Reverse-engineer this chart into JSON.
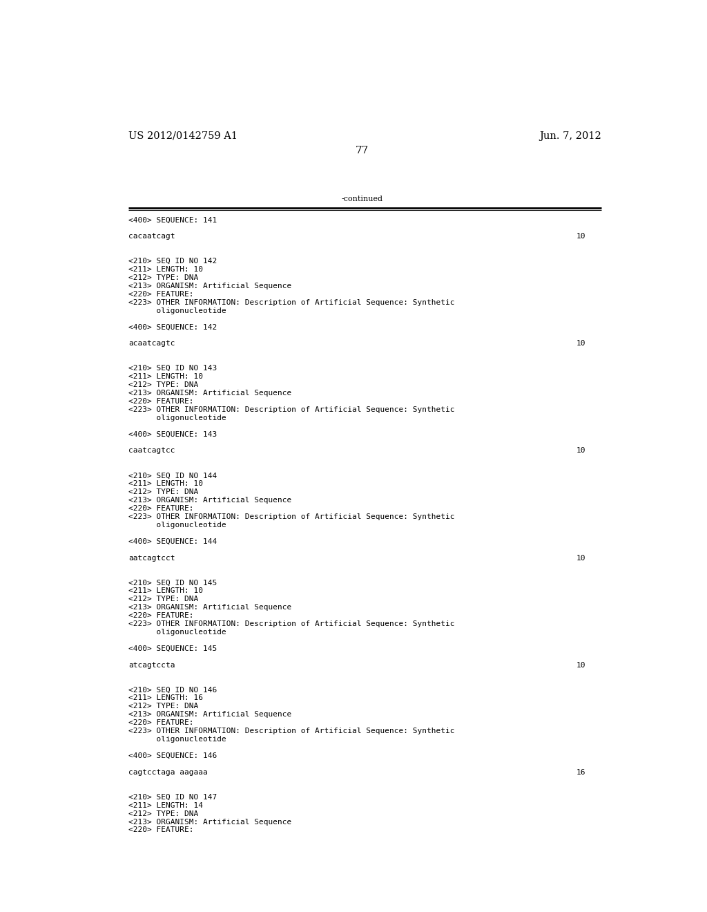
{
  "bg_color": "#ffffff",
  "header_left": "US 2012/0142759 A1",
  "header_right": "Jun. 7, 2012",
  "page_number": "77",
  "continued_text": "-continued",
  "font_size_header": 10.5,
  "font_size_body": 8.0,
  "font_size_page": 11,
  "content_lines": [
    {
      "text": "<400> SEQUENCE: 141",
      "seq": ""
    },
    {
      "text": "",
      "seq": ""
    },
    {
      "text": "cacaatcagt",
      "seq": "10"
    },
    {
      "text": "",
      "seq": ""
    },
    {
      "text": "",
      "seq": ""
    },
    {
      "text": "<210> SEQ ID NO 142",
      "seq": ""
    },
    {
      "text": "<211> LENGTH: 10",
      "seq": ""
    },
    {
      "text": "<212> TYPE: DNA",
      "seq": ""
    },
    {
      "text": "<213> ORGANISM: Artificial Sequence",
      "seq": ""
    },
    {
      "text": "<220> FEATURE:",
      "seq": ""
    },
    {
      "text": "<223> OTHER INFORMATION: Description of Artificial Sequence: Synthetic",
      "seq": ""
    },
    {
      "text": "      oligonucleotide",
      "seq": ""
    },
    {
      "text": "",
      "seq": ""
    },
    {
      "text": "<400> SEQUENCE: 142",
      "seq": ""
    },
    {
      "text": "",
      "seq": ""
    },
    {
      "text": "acaatcagtc",
      "seq": "10"
    },
    {
      "text": "",
      "seq": ""
    },
    {
      "text": "",
      "seq": ""
    },
    {
      "text": "<210> SEQ ID NO 143",
      "seq": ""
    },
    {
      "text": "<211> LENGTH: 10",
      "seq": ""
    },
    {
      "text": "<212> TYPE: DNA",
      "seq": ""
    },
    {
      "text": "<213> ORGANISM: Artificial Sequence",
      "seq": ""
    },
    {
      "text": "<220> FEATURE:",
      "seq": ""
    },
    {
      "text": "<223> OTHER INFORMATION: Description of Artificial Sequence: Synthetic",
      "seq": ""
    },
    {
      "text": "      oligonucleotide",
      "seq": ""
    },
    {
      "text": "",
      "seq": ""
    },
    {
      "text": "<400> SEQUENCE: 143",
      "seq": ""
    },
    {
      "text": "",
      "seq": ""
    },
    {
      "text": "caatcagtcc",
      "seq": "10"
    },
    {
      "text": "",
      "seq": ""
    },
    {
      "text": "",
      "seq": ""
    },
    {
      "text": "<210> SEQ ID NO 144",
      "seq": ""
    },
    {
      "text": "<211> LENGTH: 10",
      "seq": ""
    },
    {
      "text": "<212> TYPE: DNA",
      "seq": ""
    },
    {
      "text": "<213> ORGANISM: Artificial Sequence",
      "seq": ""
    },
    {
      "text": "<220> FEATURE:",
      "seq": ""
    },
    {
      "text": "<223> OTHER INFORMATION: Description of Artificial Sequence: Synthetic",
      "seq": ""
    },
    {
      "text": "      oligonucleotide",
      "seq": ""
    },
    {
      "text": "",
      "seq": ""
    },
    {
      "text": "<400> SEQUENCE: 144",
      "seq": ""
    },
    {
      "text": "",
      "seq": ""
    },
    {
      "text": "aatcagtcct",
      "seq": "10"
    },
    {
      "text": "",
      "seq": ""
    },
    {
      "text": "",
      "seq": ""
    },
    {
      "text": "<210> SEQ ID NO 145",
      "seq": ""
    },
    {
      "text": "<211> LENGTH: 10",
      "seq": ""
    },
    {
      "text": "<212> TYPE: DNA",
      "seq": ""
    },
    {
      "text": "<213> ORGANISM: Artificial Sequence",
      "seq": ""
    },
    {
      "text": "<220> FEATURE:",
      "seq": ""
    },
    {
      "text": "<223> OTHER INFORMATION: Description of Artificial Sequence: Synthetic",
      "seq": ""
    },
    {
      "text": "      oligonucleotide",
      "seq": ""
    },
    {
      "text": "",
      "seq": ""
    },
    {
      "text": "<400> SEQUENCE: 145",
      "seq": ""
    },
    {
      "text": "",
      "seq": ""
    },
    {
      "text": "atcagtccta",
      "seq": "10"
    },
    {
      "text": "",
      "seq": ""
    },
    {
      "text": "",
      "seq": ""
    },
    {
      "text": "<210> SEQ ID NO 146",
      "seq": ""
    },
    {
      "text": "<211> LENGTH: 16",
      "seq": ""
    },
    {
      "text": "<212> TYPE: DNA",
      "seq": ""
    },
    {
      "text": "<213> ORGANISM: Artificial Sequence",
      "seq": ""
    },
    {
      "text": "<220> FEATURE:",
      "seq": ""
    },
    {
      "text": "<223> OTHER INFORMATION: Description of Artificial Sequence: Synthetic",
      "seq": ""
    },
    {
      "text": "      oligonucleotide",
      "seq": ""
    },
    {
      "text": "",
      "seq": ""
    },
    {
      "text": "<400> SEQUENCE: 146",
      "seq": ""
    },
    {
      "text": "",
      "seq": ""
    },
    {
      "text": "cagtcctaga aagaaa",
      "seq": "16"
    },
    {
      "text": "",
      "seq": ""
    },
    {
      "text": "",
      "seq": ""
    },
    {
      "text": "<210> SEQ ID NO 147",
      "seq": ""
    },
    {
      "text": "<211> LENGTH: 14",
      "seq": ""
    },
    {
      "text": "<212> TYPE: DNA",
      "seq": ""
    },
    {
      "text": "<213> ORGANISM: Artificial Sequence",
      "seq": ""
    },
    {
      "text": "<220> FEATURE:",
      "seq": ""
    }
  ]
}
